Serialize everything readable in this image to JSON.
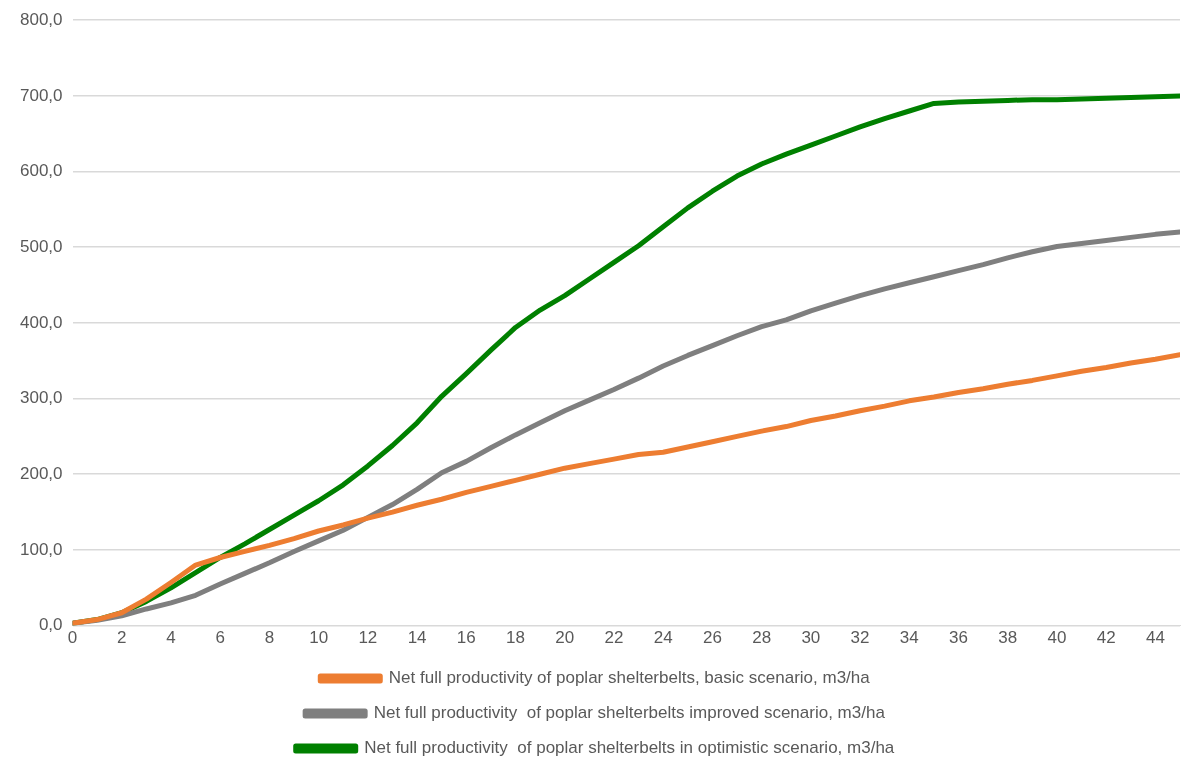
{
  "chart_data": {
    "type": "line",
    "x": [
      0,
      1,
      2,
      3,
      4,
      5,
      6,
      7,
      8,
      9,
      10,
      11,
      12,
      13,
      14,
      15,
      16,
      17,
      18,
      19,
      20,
      21,
      22,
      23,
      24,
      25,
      26,
      27,
      28,
      29,
      30,
      31,
      32,
      33,
      34,
      35,
      36,
      37,
      38,
      39,
      40,
      41,
      42,
      43,
      44,
      45
    ],
    "series": [
      {
        "name": "Net full productivity of poplar shelterbelts, basic scenario, m3/ha",
        "color": "#ed7d31",
        "values": [
          3,
          8,
          17,
          35,
          57,
          80,
          90,
          98,
          106,
          115,
          125,
          133,
          142,
          150,
          159,
          167,
          176,
          184,
          192,
          200,
          208,
          214,
          220,
          226,
          229,
          236,
          243,
          250,
          257,
          263,
          271,
          277,
          284,
          290,
          297,
          302,
          308,
          313,
          319,
          324,
          330,
          336,
          341,
          347,
          352,
          358
        ]
      },
      {
        "name": "Net full productivity  of poplar shelterbelts improved scenario, m3/ha",
        "color": "#7f7f7f",
        "values": [
          3,
          7,
          13,
          22,
          30,
          40,
          55,
          69,
          83,
          98,
          112,
          126,
          143,
          160,
          180,
          202,
          217,
          235,
          252,
          268,
          284,
          298,
          312,
          327,
          343,
          357,
          370,
          383,
          395,
          404,
          416,
          426,
          436,
          445,
          453,
          461,
          469,
          477,
          486,
          494,
          501,
          505,
          509,
          513,
          517,
          520
        ]
      },
      {
        "name": "Net full productivity  of poplar shelterbelts in optimistic scenario, m3/ha",
        "color": "#008000",
        "values": [
          3,
          8,
          17,
          32,
          50,
          70,
          90,
          108,
          127,
          146,
          165,
          186,
          211,
          238,
          268,
          303,
          333,
          364,
          394,
          417,
          436,
          458,
          480,
          502,
          527,
          552,
          574,
          594,
          610,
          623,
          635,
          647,
          659,
          670,
          680,
          690,
          692,
          693,
          694,
          695,
          695,
          696,
          697,
          698,
          699,
          700
        ]
      }
    ],
    "xlim": [
      0,
      45
    ],
    "xticks": [
      0,
      2,
      4,
      6,
      8,
      10,
      12,
      14,
      16,
      18,
      20,
      22,
      24,
      26,
      28,
      30,
      32,
      34,
      36,
      38,
      40,
      42,
      44
    ],
    "ylim": [
      0,
      800
    ],
    "yticks": [
      {
        "value": 0,
        "label": "0,0"
      },
      {
        "value": 100,
        "label": "100,0"
      },
      {
        "value": 200,
        "label": "200,0"
      },
      {
        "value": 300,
        "label": "300,0"
      },
      {
        "value": 400,
        "label": "400,0"
      },
      {
        "value": 500,
        "label": "500,0"
      },
      {
        "value": 600,
        "label": "600,0"
      },
      {
        "value": 700,
        "label": "700,0"
      },
      {
        "value": 800,
        "label": "800,0"
      }
    ],
    "grid": "y",
    "legend": "bottom",
    "marker": "none",
    "line_style": "solid"
  }
}
